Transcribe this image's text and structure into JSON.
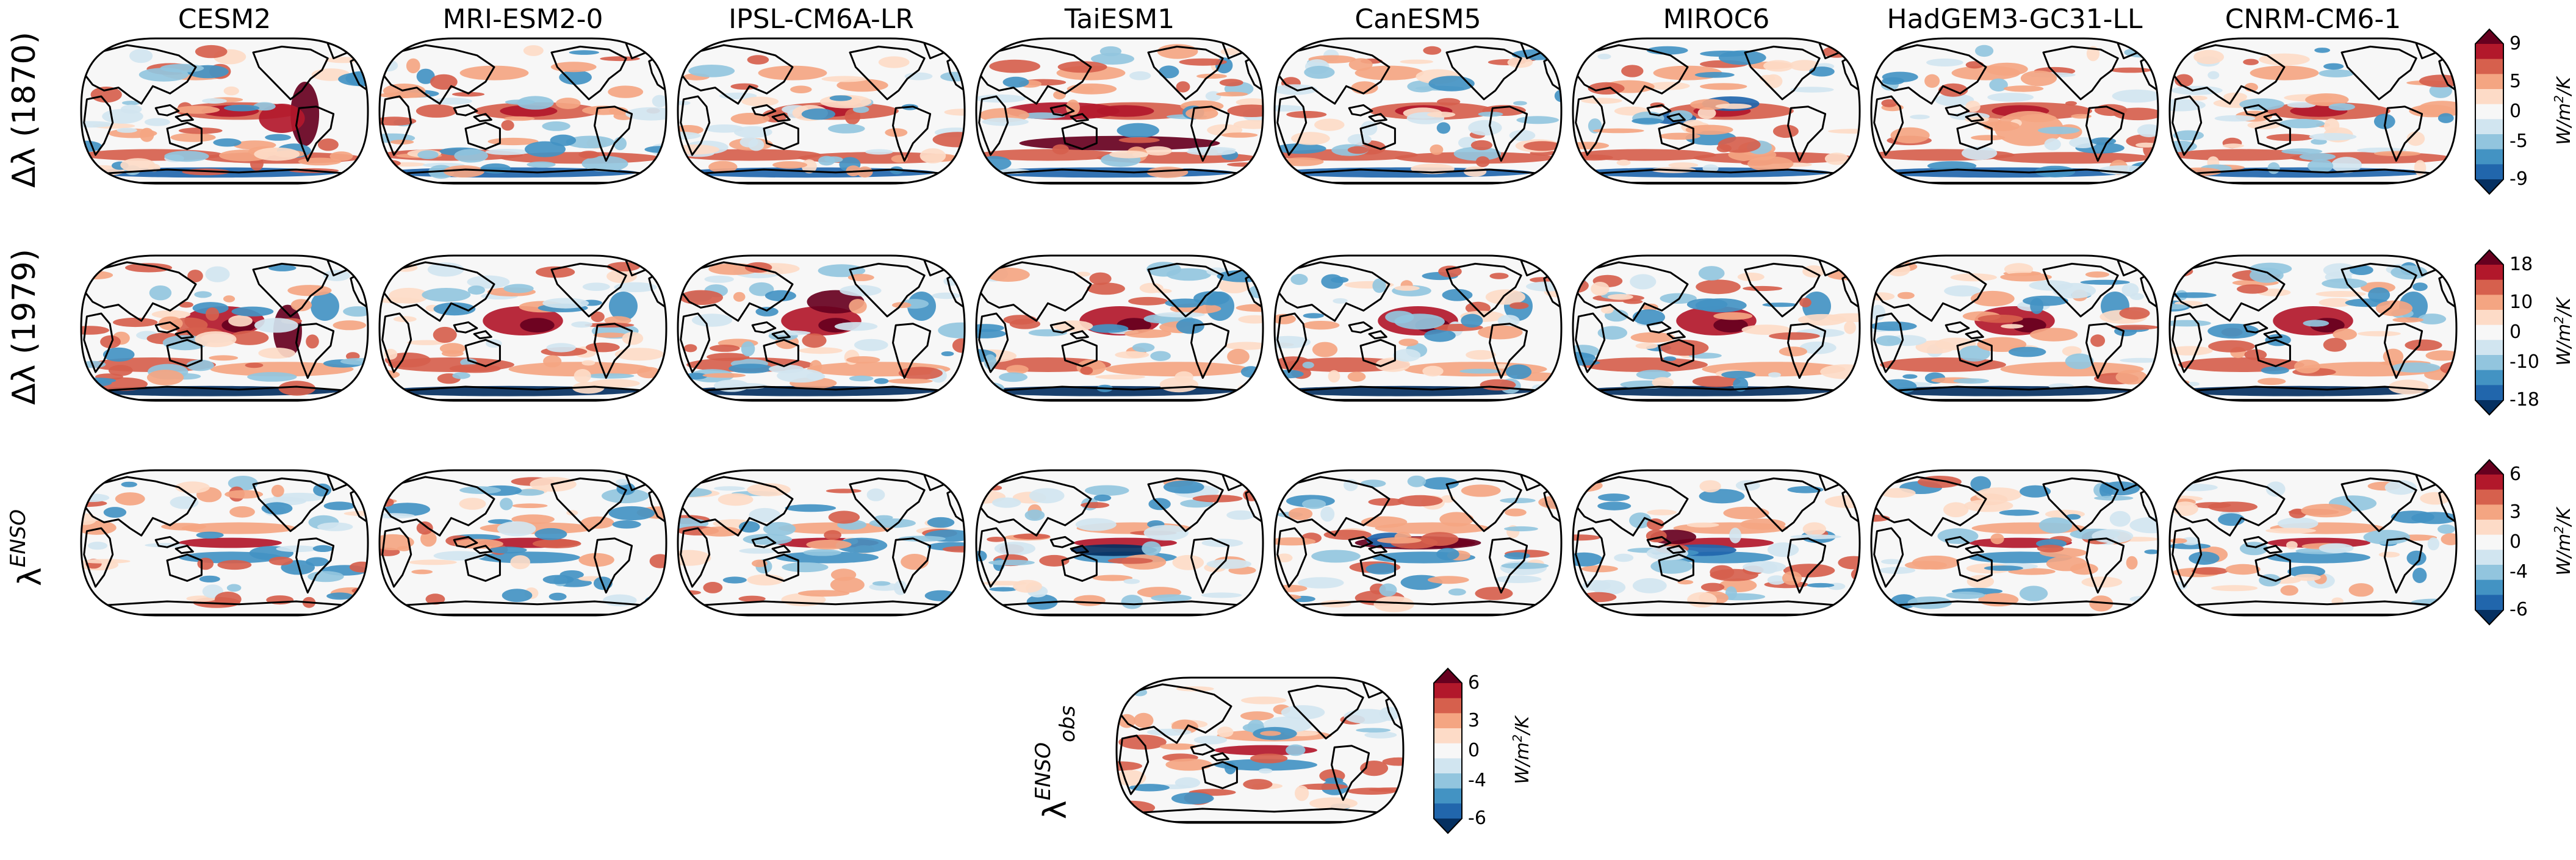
{
  "models": [
    "CESM2",
    "MRI-ESM2-0",
    "IPSL-CM6A-LR",
    "TaiESM1",
    "CanESM5",
    "MIROC6",
    "HadGEM3-GC31-LL",
    "CNRM-CM6-1"
  ],
  "rows": [
    {
      "symbol": "Δλ",
      "suffix": "(1870)",
      "sup": "",
      "sub": ""
    },
    {
      "symbol": "Δλ",
      "suffix": "(1979)",
      "sup": "",
      "sub": ""
    },
    {
      "symbol": "λ",
      "suffix": "",
      "sup": "ENSO",
      "sub": ""
    }
  ],
  "obs_panel": {
    "symbol": "λ",
    "sup": "ENSO",
    "sub": "obs"
  },
  "colorbars": [
    {
      "ticks": [
        "9",
        "5",
        "0",
        "-5",
        "-9"
      ],
      "unit_base": "W/m",
      "unit_exp": "2",
      "unit_tail": "/K"
    },
    {
      "ticks": [
        "18",
        "10",
        "0",
        "-10",
        "-18"
      ],
      "unit_base": "W/m",
      "unit_exp": "2",
      "unit_tail": "/K"
    },
    {
      "ticks": [
        "6",
        "3",
        "0",
        "-4",
        "-6"
      ],
      "unit_base": "W/m",
      "unit_exp": "2",
      "unit_tail": "/K"
    },
    {
      "ticks": [
        "6",
        "3",
        "0",
        "-4",
        "-6"
      ],
      "unit_base": "W/m",
      "unit_exp": "2",
      "unit_tail": "/K"
    }
  ],
  "colors": {
    "palette": [
      "#053061",
      "#2166ac",
      "#4393c3",
      "#92c5de",
      "#d1e5f0",
      "#f7f7f7",
      "#fddbc7",
      "#f4a582",
      "#d6604d",
      "#b2182b",
      "#67001f"
    ]
  }
}
